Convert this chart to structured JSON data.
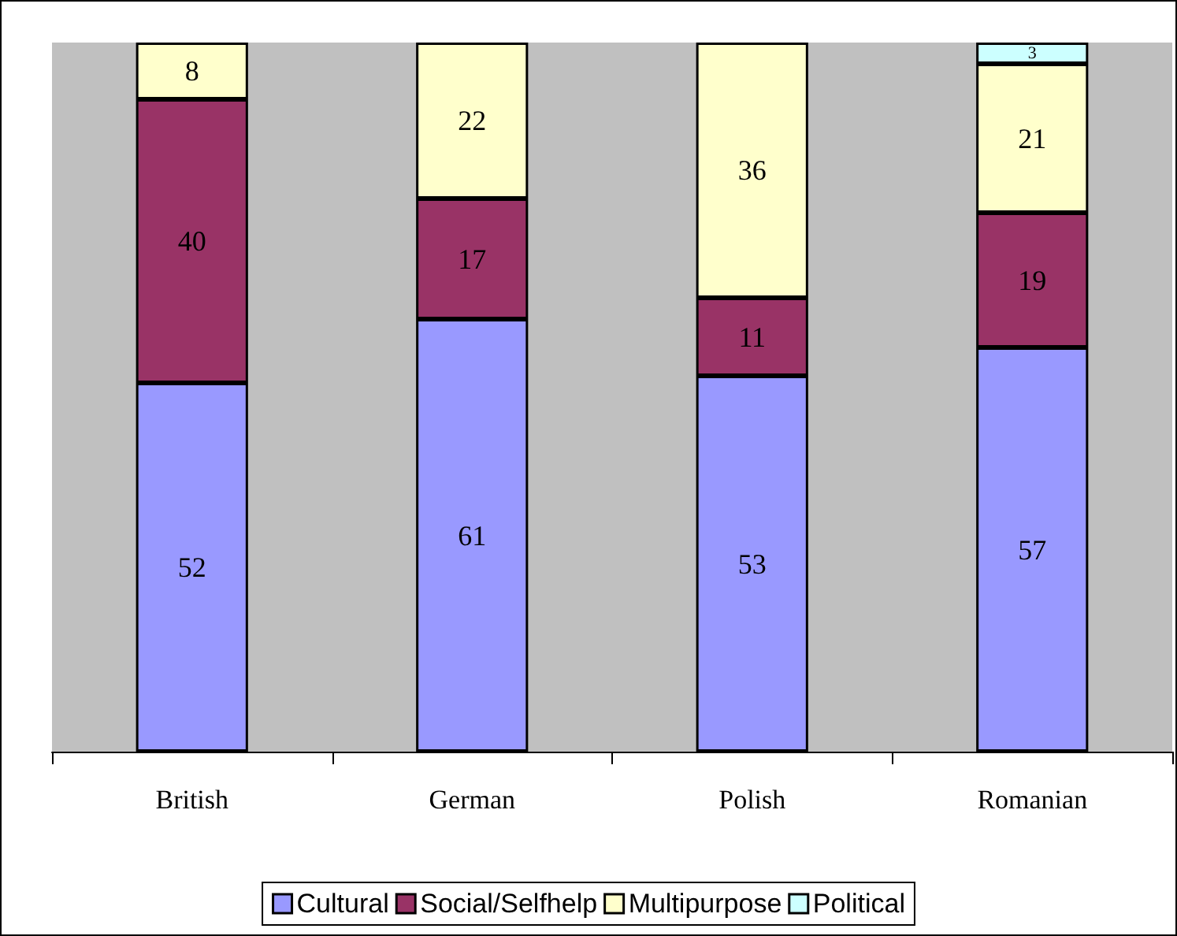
{
  "chart_data": {
    "type": "bar",
    "stacked": true,
    "categories": [
      "British",
      "German",
      "Polish",
      "Romanian"
    ],
    "series": [
      {
        "name": "Cultural",
        "color": "#9999ff",
        "values": [
          52,
          61,
          53,
          57
        ]
      },
      {
        "name": "Social/Selfhelp",
        "color": "#993366",
        "values": [
          40,
          17,
          11,
          19
        ]
      },
      {
        "name": "Multipurpose",
        "color": "#ffffcc",
        "values": [
          8,
          22,
          36,
          21
        ]
      },
      {
        "name": "Political",
        "color": "#ccffff",
        "values": [
          null,
          null,
          null,
          3
        ]
      }
    ],
    "data_labels": true,
    "legend": "bottom"
  }
}
